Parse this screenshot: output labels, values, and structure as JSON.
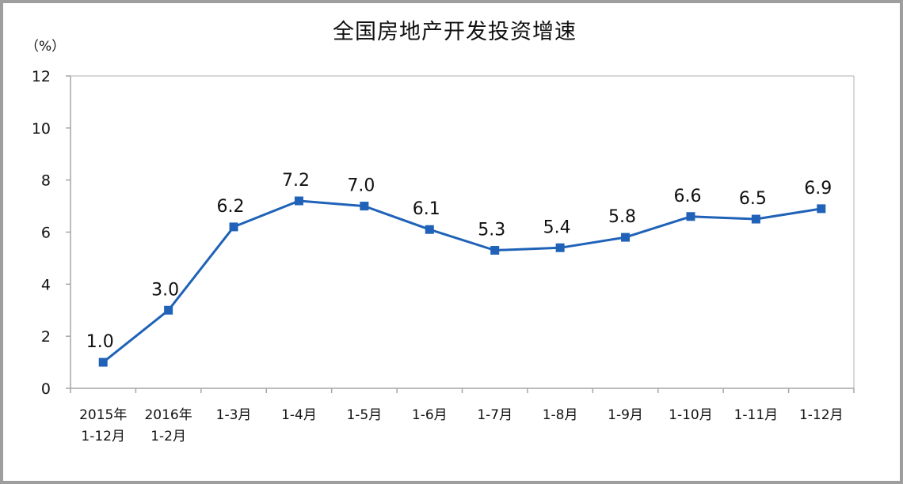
{
  "chart_data": {
    "type": "line",
    "title": "全国房地产开发投资增速",
    "ylabel": "（%）",
    "xlabel": "",
    "ylim": [
      0,
      12
    ],
    "yticks": [
      0,
      2,
      4,
      6,
      8,
      10,
      12
    ],
    "grid": false,
    "legend": "none",
    "categories": [
      [
        "2015年",
        "1-12月"
      ],
      [
        "2016年",
        "1-2月"
      ],
      [
        "1-3月"
      ],
      [
        "1-4月"
      ],
      [
        "1-5月"
      ],
      [
        "1-6月"
      ],
      [
        "1-7月"
      ],
      [
        "1-8月"
      ],
      [
        "1-9月"
      ],
      [
        "1-10月"
      ],
      [
        "1-11月"
      ],
      [
        "1-12月"
      ]
    ],
    "series": [
      {
        "values": [
          1.0,
          3.0,
          6.2,
          7.2,
          7.0,
          6.1,
          5.3,
          5.4,
          5.8,
          6.6,
          6.5,
          6.9
        ],
        "labels": [
          "1.0",
          "3.0",
          "6.2",
          "7.2",
          "7.0",
          "6.1",
          "5.3",
          "5.4",
          "5.8",
          "6.6",
          "6.5",
          "6.9"
        ],
        "color": "#1f62b8"
      }
    ],
    "colors": {
      "line": "#1f62b8",
      "marker": "#1f62b8",
      "axis": "#a6a6a6",
      "plot_border": "#bfbfbf"
    }
  }
}
